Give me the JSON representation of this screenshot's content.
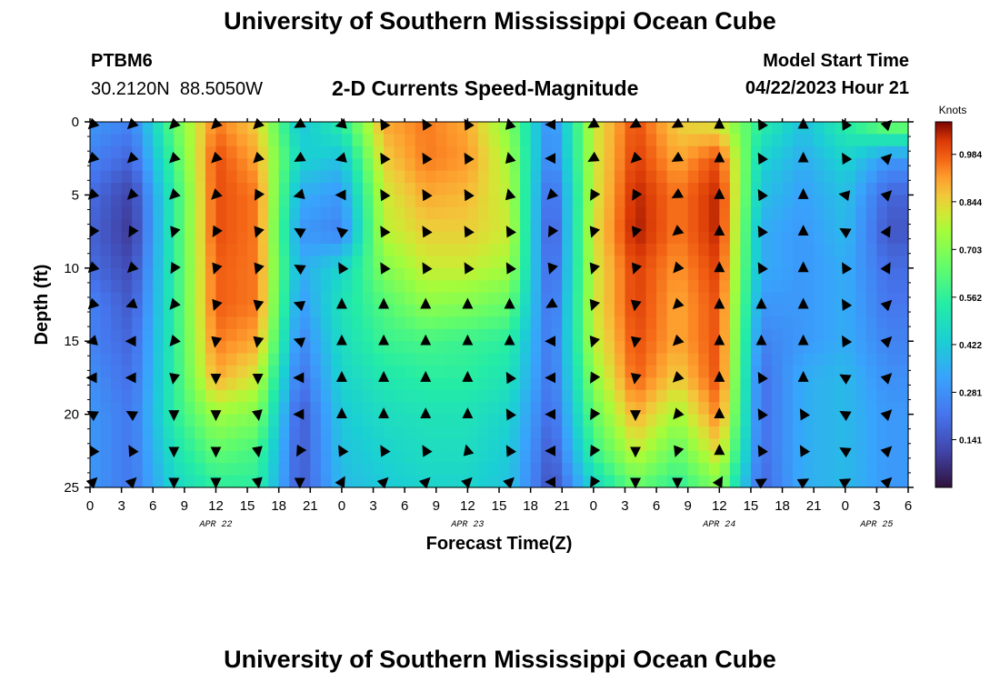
{
  "header": {
    "title": "University of Southern Mississippi Ocean Cube",
    "station_id": "PTBM6",
    "location": "30.2120N  88.5050W",
    "plot_title": "2-D Currents Speed-Magnitude",
    "model_start_label": "Model Start Time",
    "model_start_value": "04/22/2023 Hour 21"
  },
  "footer": {
    "title": "University of Southern Mississippi Ocean Cube"
  },
  "colorbar": {
    "unit_label": "Knots",
    "ticks": [
      "0.984",
      "0.844",
      "0.703",
      "0.562",
      "0.422",
      "0.281",
      "0.141"
    ],
    "tick_values": [
      0.984,
      0.844,
      0.703,
      0.562,
      0.422,
      0.281,
      0.141
    ],
    "range": [
      0.0,
      1.08
    ]
  },
  "chart_data": {
    "type": "heatmap",
    "title": "2-D Currents Speed-Magnitude",
    "xlabel": "Forecast Time(Z)",
    "ylabel": "Depth (ft)",
    "x_range_hours": [
      0,
      78
    ],
    "y_range_ft": [
      0,
      25
    ],
    "x_ticks": [
      "0",
      "3",
      "6",
      "9",
      "12",
      "15",
      "18",
      "21",
      "0",
      "3",
      "6",
      "9",
      "12",
      "15",
      "18",
      "21",
      "0",
      "3",
      "6",
      "9",
      "12",
      "15",
      "18",
      "21",
      "0",
      "3",
      "6"
    ],
    "y_ticks": [
      "0",
      "5",
      "10",
      "15",
      "20",
      "25"
    ],
    "y_tick_values": [
      0,
      5,
      10,
      15,
      20,
      25
    ],
    "date_labels": [
      {
        "label": "APR 22",
        "hour": 12
      },
      {
        "label": "APR 23",
        "hour": 36
      },
      {
        "label": "APR 24",
        "hour": 60
      },
      {
        "label": "APR 25",
        "hour": 75
      }
    ],
    "units": "Knots",
    "time_hours": [
      0,
      4,
      8,
      12,
      16,
      20,
      24,
      28,
      32,
      36,
      40,
      44,
      48,
      52,
      56,
      60,
      64,
      68,
      72,
      76
    ],
    "depths_ft": [
      0,
      2.5,
      5,
      7.5,
      10,
      12.5,
      15,
      17.5,
      20,
      22.5,
      25
    ],
    "speed_knots": [
      [
        0.3,
        0.25,
        0.65,
        0.95,
        0.85,
        0.4,
        0.55,
        0.9,
        0.95,
        0.9,
        0.7,
        0.25,
        0.8,
        1.0,
        0.85,
        0.8,
        0.55,
        0.4,
        0.55,
        0.7
      ],
      [
        0.25,
        0.18,
        0.6,
        1.0,
        0.9,
        0.45,
        0.4,
        0.85,
        0.95,
        0.92,
        0.75,
        0.22,
        0.8,
        1.02,
        0.9,
        1.0,
        0.45,
        0.35,
        0.45,
        0.3
      ],
      [
        0.2,
        0.1,
        0.55,
        1.0,
        0.95,
        0.35,
        0.3,
        0.8,
        0.9,
        0.88,
        0.78,
        0.15,
        0.8,
        1.05,
        0.95,
        1.05,
        0.4,
        0.32,
        0.4,
        0.18
      ],
      [
        0.18,
        0.08,
        0.55,
        1.0,
        0.95,
        0.3,
        0.25,
        0.78,
        0.85,
        0.85,
        0.8,
        0.12,
        0.82,
        1.06,
        0.95,
        1.05,
        0.35,
        0.3,
        0.38,
        0.15
      ],
      [
        0.2,
        0.12,
        0.55,
        0.98,
        0.95,
        0.35,
        0.45,
        0.7,
        0.8,
        0.8,
        0.75,
        0.15,
        0.8,
        1.02,
        0.92,
        1.02,
        0.35,
        0.3,
        0.35,
        0.2
      ],
      [
        0.25,
        0.15,
        0.55,
        0.98,
        0.95,
        0.3,
        0.5,
        0.62,
        0.72,
        0.7,
        0.65,
        0.18,
        0.8,
        1.02,
        0.9,
        1.0,
        0.3,
        0.3,
        0.35,
        0.22
      ],
      [
        0.25,
        0.18,
        0.55,
        0.95,
        0.9,
        0.25,
        0.48,
        0.58,
        0.6,
        0.58,
        0.55,
        0.2,
        0.78,
        1.0,
        0.9,
        1.0,
        0.25,
        0.3,
        0.35,
        0.25
      ],
      [
        0.28,
        0.2,
        0.55,
        0.9,
        0.8,
        0.2,
        0.45,
        0.52,
        0.55,
        0.55,
        0.5,
        0.2,
        0.72,
        0.98,
        0.85,
        1.0,
        0.2,
        0.35,
        0.38,
        0.28
      ],
      [
        0.3,
        0.22,
        0.55,
        0.75,
        0.7,
        0.15,
        0.42,
        0.48,
        0.5,
        0.5,
        0.45,
        0.18,
        0.65,
        0.9,
        0.75,
        0.95,
        0.2,
        0.35,
        0.38,
        0.3
      ],
      [
        0.3,
        0.22,
        0.5,
        0.65,
        0.6,
        0.15,
        0.4,
        0.45,
        0.48,
        0.48,
        0.42,
        0.15,
        0.58,
        0.8,
        0.65,
        0.85,
        0.2,
        0.35,
        0.38,
        0.3
      ],
      [
        0.3,
        0.22,
        0.45,
        0.55,
        0.55,
        0.15,
        0.38,
        0.42,
        0.45,
        0.45,
        0.4,
        0.12,
        0.45,
        0.65,
        0.55,
        0.7,
        0.18,
        0.35,
        0.38,
        0.3
      ]
    ],
    "direction_deg": [
      [
        225,
        225,
        225,
        225,
        225,
        240,
        255,
        330,
        330,
        330,
        345,
        270,
        240,
        240,
        240,
        360,
        330,
        360,
        330,
        45
      ],
      [
        225,
        225,
        225,
        225,
        225,
        240,
        255,
        330,
        330,
        330,
        345,
        270,
        240,
        225,
        240,
        360,
        330,
        360,
        330,
        45
      ],
      [
        225,
        225,
        225,
        225,
        210,
        255,
        270,
        330,
        330,
        330,
        345,
        225,
        210,
        210,
        240,
        360,
        330,
        360,
        280,
        45
      ],
      [
        210,
        210,
        200,
        210,
        200,
        300,
        310,
        330,
        330,
        330,
        330,
        210,
        200,
        200,
        230,
        360,
        330,
        360,
        300,
        30
      ],
      [
        225,
        225,
        210,
        200,
        200,
        300,
        330,
        330,
        330,
        330,
        330,
        200,
        200,
        200,
        220,
        360,
        330,
        360,
        330,
        30
      ],
      [
        225,
        250,
        220,
        200,
        190,
        290,
        360,
        360,
        360,
        360,
        360,
        240,
        200,
        190,
        225,
        360,
        360,
        360,
        330,
        45
      ],
      [
        255,
        270,
        220,
        190,
        190,
        290,
        360,
        360,
        360,
        360,
        360,
        270,
        200,
        190,
        225,
        360,
        360,
        360,
        330,
        45
      ],
      [
        270,
        270,
        190,
        180,
        180,
        270,
        360,
        360,
        360,
        360,
        330,
        270,
        210,
        190,
        225,
        360,
        330,
        360,
        300,
        45
      ],
      [
        300,
        300,
        180,
        180,
        170,
        270,
        360,
        360,
        360,
        360,
        330,
        270,
        210,
        180,
        220,
        360,
        330,
        330,
        300,
        45
      ],
      [
        330,
        330,
        180,
        180,
        170,
        210,
        330,
        330,
        330,
        345,
        330,
        270,
        210,
        180,
        200,
        360,
        330,
        330,
        300,
        45
      ],
      [
        45,
        45,
        180,
        180,
        170,
        180,
        30,
        45,
        45,
        45,
        45,
        270,
        210,
        180,
        180,
        30,
        60,
        60,
        60,
        45
      ]
    ]
  }
}
